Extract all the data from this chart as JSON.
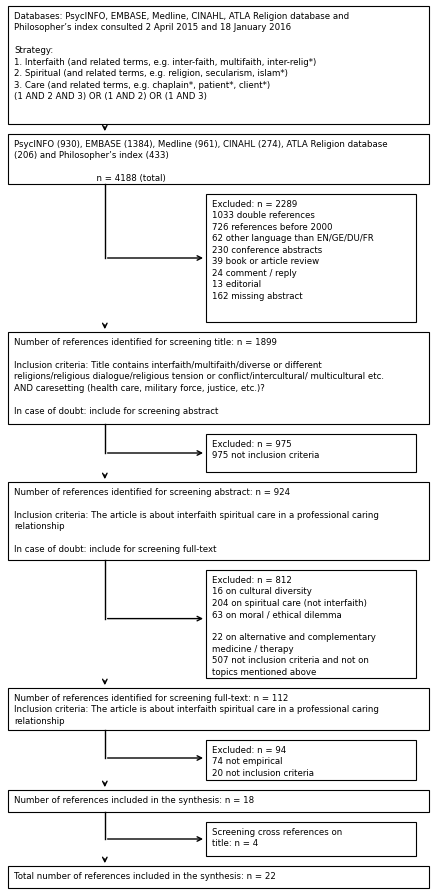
{
  "bg_color": "#ffffff",
  "box_edge_color": "#000000",
  "text_color": "#000000",
  "font_size": 6.2,
  "fig_w": 4.37,
  "fig_h": 8.9,
  "dpi": 100,
  "boxes": [
    {
      "id": "db",
      "text": "Databases: PsycINFO, EMBASE, Medline, CINAHL, ATLA Religion database and\nPhilosopher’s index consulted 2 April 2015 and 18 January 2016\n\nStrategy:\n1. Interfaith (and related terms, e.g. inter-faith, multifaith, inter-relig*)\n2. Spiritual (and related terms, e.g. religion, secularism, islam*)\n3. Care (and related terms, e.g. chaplain*, patient*, client*)\n(1 AND 2 AND 3) OR (1 AND 2) OR (1 AND 3)"
    },
    {
      "id": "results",
      "text": "PsycINFO (930), EMBASE (1384), Medline (961), CINAHL (274), ATLA Religion database\n(206) and Philosopher’s index (433)\n\n                              n = 4188 (total)"
    },
    {
      "id": "exc1",
      "text": "Excluded: n = 2289\n1033 double references\n726 references before 2000\n62 other language than EN/GE/DU/FR\n230 conference abstracts\n39 book or article review\n24 comment / reply\n13 editorial\n162 missing abstract"
    },
    {
      "id": "screen_title",
      "text": "Number of references identified for screening title: n = 1899\n\nInclusion criteria: Title contains interfaith/multifaith/diverse or different\nreligions/religious dialogue/religious tension or conflict/intercultural/ multicultural etc.\nAND caresetting (health care, military force, justice, etc.)?\n\nIn case of doubt: include for screening abstract"
    },
    {
      "id": "exc2",
      "text": "Excluded: n = 975\n975 not inclusion criteria"
    },
    {
      "id": "screen_abstract",
      "text": "Number of references identified for screening abstract: n = 924\n\nInclusion criteria: The article is about interfaith spiritual care in a professional caring\nrelationship\n\nIn case of doubt: include for screening full-text"
    },
    {
      "id": "exc3",
      "text": "Excluded: n = 812\n16 on cultural diversity\n204 on spiritual care (not interfaith)\n63 on moral / ethical dilemma\n\n22 on alternative and complementary\nmedicine / therapy\n507 not inclusion criteria and not on\ntopics mentioned above"
    },
    {
      "id": "screen_full",
      "text": "Number of references identified for screening full-text: n = 112\nInclusion criteria: The article is about interfaith spiritual care in a professional caring\nrelationship"
    },
    {
      "id": "exc4",
      "text": "Excluded: n = 94\n74 not empirical\n20 not inclusion criteria"
    },
    {
      "id": "synthesis",
      "text": "Number of references included in the synthesis: n = 18"
    },
    {
      "id": "cross_ref",
      "text": "Screening cross references on\ntitle: n = 4"
    },
    {
      "id": "total",
      "text": "Total number of references included in the synthesis: n = 22"
    }
  ]
}
